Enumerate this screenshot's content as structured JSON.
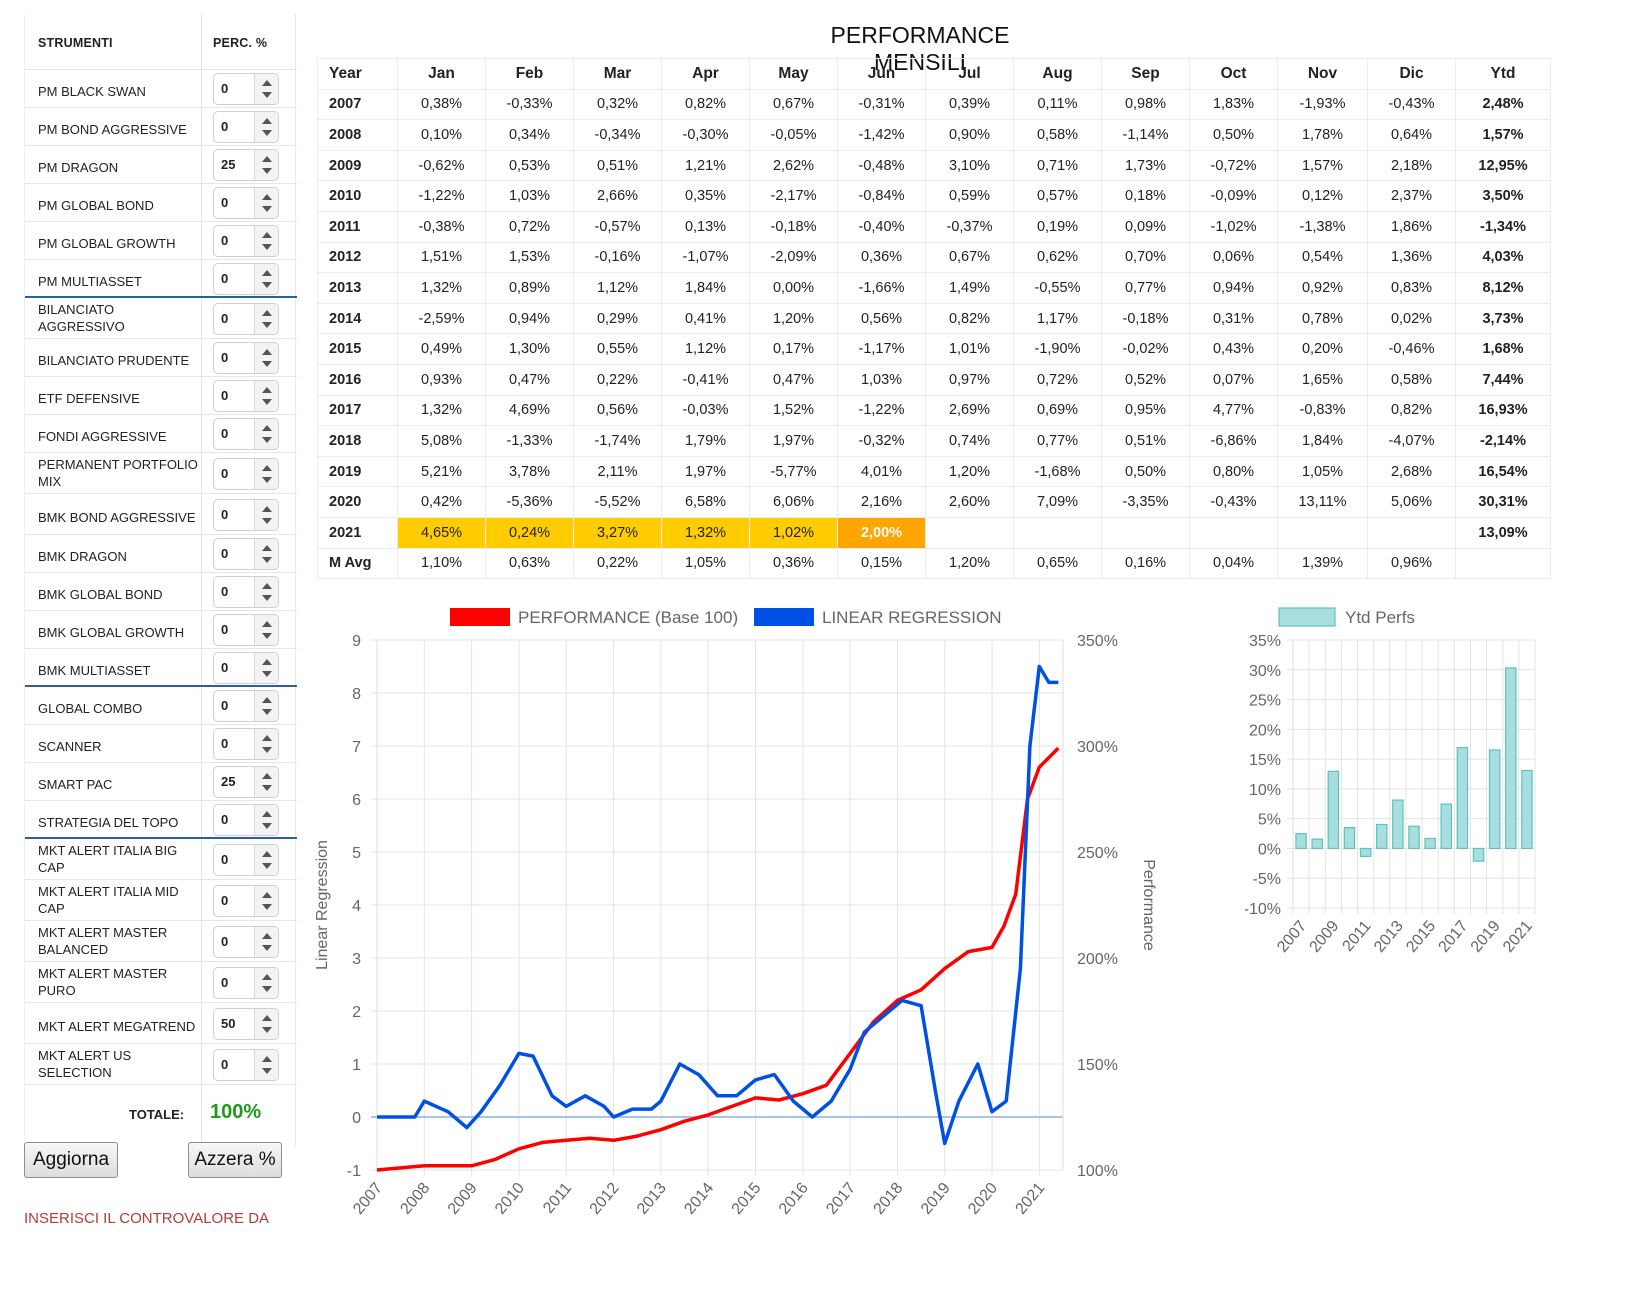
{
  "left_panel": {
    "header": {
      "col1": "STRUMENTI",
      "col2": "PERC. %"
    },
    "instruments": [
      {
        "name": "PM BLACK SWAN",
        "value": "0"
      },
      {
        "name": "PM BOND AGGRESSIVE",
        "value": "0"
      },
      {
        "name": "PM DRAGON",
        "value": "25"
      },
      {
        "name": "PM GLOBAL BOND",
        "value": "0"
      },
      {
        "name": "PM GLOBAL GROWTH",
        "value": "0"
      },
      {
        "name": "PM MULTIASSET",
        "value": "0"
      },
      {
        "name": "BILANCIATO AGGRESSIVO",
        "value": "0"
      },
      {
        "name": "BILANCIATO PRUDENTE",
        "value": "0"
      },
      {
        "name": "ETF DEFENSIVE",
        "value": "0"
      },
      {
        "name": "FONDI AGGRESSIVE",
        "value": "0"
      },
      {
        "name": "PERMANENT PORTFOLIO MIX",
        "value": "0"
      },
      {
        "name": "BMK BOND AGGRESSIVE",
        "value": "0"
      },
      {
        "name": "BMK DRAGON",
        "value": "0"
      },
      {
        "name": "BMK GLOBAL BOND",
        "value": "0"
      },
      {
        "name": "BMK GLOBAL GROWTH",
        "value": "0"
      },
      {
        "name": "BMK MULTIASSET",
        "value": "0"
      },
      {
        "name": "GLOBAL COMBO",
        "value": "0"
      },
      {
        "name": "SCANNER",
        "value": "0"
      },
      {
        "name": "SMART PAC",
        "value": "25"
      },
      {
        "name": "STRATEGIA DEL TOPO",
        "value": "0"
      },
      {
        "name": "MKT ALERT ITALIA BIG CAP",
        "value": "0"
      },
      {
        "name": "MKT ALERT ITALIA MID CAP",
        "value": "0"
      },
      {
        "name": "MKT ALERT MASTER BALANCED",
        "value": "0"
      },
      {
        "name": "MKT ALERT MASTER PURO",
        "value": "0"
      },
      {
        "name": "MKT ALERT MEGATREND",
        "value": "50"
      },
      {
        "name": "MKT ALERT US SELECTION",
        "value": "0"
      }
    ],
    "totale_label": "TOTALE:",
    "totale_value": "100%",
    "aggiorna_label": "Aggiorna",
    "azzera_label": "Azzera %",
    "inserisci_text": "INSERISCI IL CONTROVALORE DA"
  },
  "table": {
    "title": "PERFORMANCE MENSILI",
    "headers": [
      "Year",
      "Jan",
      "Feb",
      "Mar",
      "Apr",
      "May",
      "Jun",
      "Jul",
      "Aug",
      "Sep",
      "Oct",
      "Nov",
      "Dic",
      "Ytd"
    ],
    "rows": [
      [
        "2007",
        "0,38%",
        "-0,33%",
        "0,32%",
        "0,82%",
        "0,67%",
        "-0,31%",
        "0,39%",
        "0,11%",
        "0,98%",
        "1,83%",
        "-1,93%",
        "-0,43%",
        "2,48%"
      ],
      [
        "2008",
        "0,10%",
        "0,34%",
        "-0,34%",
        "-0,30%",
        "-0,05%",
        "-1,42%",
        "0,90%",
        "0,58%",
        "-1,14%",
        "0,50%",
        "1,78%",
        "0,64%",
        "1,57%"
      ],
      [
        "2009",
        "-0,62%",
        "0,53%",
        "0,51%",
        "1,21%",
        "2,62%",
        "-0,48%",
        "3,10%",
        "0,71%",
        "1,73%",
        "-0,72%",
        "1,57%",
        "2,18%",
        "12,95%"
      ],
      [
        "2010",
        "-1,22%",
        "1,03%",
        "2,66%",
        "0,35%",
        "-2,17%",
        "-0,84%",
        "0,59%",
        "0,57%",
        "0,18%",
        "-0,09%",
        "0,12%",
        "2,37%",
        "3,50%"
      ],
      [
        "2011",
        "-0,38%",
        "0,72%",
        "-0,57%",
        "0,13%",
        "-0,18%",
        "-0,40%",
        "-0,37%",
        "0,19%",
        "0,09%",
        "-1,02%",
        "-1,38%",
        "1,86%",
        "-1,34%"
      ],
      [
        "2012",
        "1,51%",
        "1,53%",
        "-0,16%",
        "-1,07%",
        "-2,09%",
        "0,36%",
        "0,67%",
        "0,62%",
        "0,70%",
        "0,06%",
        "0,54%",
        "1,36%",
        "4,03%"
      ],
      [
        "2013",
        "1,32%",
        "0,89%",
        "1,12%",
        "1,84%",
        "0,00%",
        "-1,66%",
        "1,49%",
        "-0,55%",
        "0,77%",
        "0,94%",
        "0,92%",
        "0,83%",
        "8,12%"
      ],
      [
        "2014",
        "-2,59%",
        "0,94%",
        "0,29%",
        "0,41%",
        "1,20%",
        "0,56%",
        "0,82%",
        "1,17%",
        "-0,18%",
        "0,31%",
        "0,78%",
        "0,02%",
        "3,73%"
      ],
      [
        "2015",
        "0,49%",
        "1,30%",
        "0,55%",
        "1,12%",
        "0,17%",
        "-1,17%",
        "1,01%",
        "-1,90%",
        "-0,02%",
        "0,43%",
        "0,20%",
        "-0,46%",
        "1,68%"
      ],
      [
        "2016",
        "0,93%",
        "0,47%",
        "0,22%",
        "-0,41%",
        "0,47%",
        "1,03%",
        "0,97%",
        "0,72%",
        "0,52%",
        "0,07%",
        "1,65%",
        "0,58%",
        "7,44%"
      ],
      [
        "2017",
        "1,32%",
        "4,69%",
        "0,56%",
        "-0,03%",
        "1,52%",
        "-1,22%",
        "2,69%",
        "0,69%",
        "0,95%",
        "4,77%",
        "-0,83%",
        "0,82%",
        "16,93%"
      ],
      [
        "2018",
        "5,08%",
        "-1,33%",
        "-1,74%",
        "1,79%",
        "1,97%",
        "-0,32%",
        "0,74%",
        "0,77%",
        "0,51%",
        "-6,86%",
        "1,84%",
        "-4,07%",
        "-2,14%"
      ],
      [
        "2019",
        "5,21%",
        "3,78%",
        "2,11%",
        "1,97%",
        "-5,77%",
        "4,01%",
        "1,20%",
        "-1,68%",
        "0,50%",
        "0,80%",
        "1,05%",
        "2,68%",
        "16,54%"
      ],
      [
        "2020",
        "0,42%",
        "-5,36%",
        "-5,52%",
        "6,58%",
        "6,06%",
        "2,16%",
        "2,60%",
        "7,09%",
        "-3,35%",
        "-0,43%",
        "13,11%",
        "5,06%",
        "30,31%"
      ],
      [
        "2021",
        "4,65%",
        "0,24%",
        "3,27%",
        "1,32%",
        "1,02%",
        "2,00%",
        "",
        "",
        "",
        "",
        "",
        "",
        "13,09%"
      ],
      [
        "M Avg",
        "1,10%",
        "0,63%",
        "0,22%",
        "1,05%",
        "0,36%",
        "0,15%",
        "1,20%",
        "0,65%",
        "0,16%",
        "0,04%",
        "1,39%",
        "0,96%",
        ""
      ]
    ],
    "highlight_colors": {
      "months": "#ffcc00",
      "current": "#ffa500"
    }
  },
  "chart_data": [
    {
      "type": "line",
      "series": [
        {
          "name": "PERFORMANCE (Base 100)",
          "color": "#ff0000",
          "axis": "right",
          "x": [
            2007,
            2007.5,
            2008,
            2008.5,
            2009,
            2009.5,
            2010,
            2010.5,
            2011,
            2011.5,
            2012,
            2012.5,
            2013,
            2013.5,
            2014,
            2014.5,
            2015,
            2015.5,
            2016,
            2016.5,
            2017,
            2017.5,
            2018,
            2018.5,
            2019,
            2019.5,
            2020,
            2020.25,
            2020.5,
            2020.75,
            2021,
            2021.4
          ],
          "y": [
            100,
            101,
            102,
            102,
            102,
            105,
            110,
            113,
            114,
            115,
            114,
            116,
            119,
            123,
            126,
            130,
            134,
            133,
            136,
            140,
            155,
            170,
            180,
            185,
            195,
            203,
            205,
            215,
            230,
            275,
            290,
            299
          ]
        },
        {
          "name": "LINEAR REGRESSION",
          "color": "#0050e6",
          "axis": "left",
          "x": [
            2007,
            2007.8,
            2008,
            2008.5,
            2008.9,
            2009.2,
            2009.6,
            2010,
            2010.3,
            2010.7,
            2011,
            2011.4,
            2011.8,
            2012,
            2012.4,
            2012.8,
            2013,
            2013.4,
            2013.8,
            2014.2,
            2014.6,
            2015,
            2015.4,
            2015.8,
            2016.2,
            2016.6,
            2017,
            2017.3,
            2017.7,
            2018.1,
            2018.5,
            2018.8,
            2019,
            2019.3,
            2019.7,
            2020,
            2020.3,
            2020.6,
            2020.8,
            2021,
            2021.2,
            2021.4
          ],
          "y": [
            0,
            0,
            0.3,
            0.1,
            -0.2,
            0.1,
            0.6,
            1.2,
            1.15,
            0.4,
            0.2,
            0.4,
            0.2,
            0,
            0.15,
            0.15,
            0.3,
            1.0,
            0.8,
            0.4,
            0.4,
            0.7,
            0.8,
            0.3,
            0,
            0.3,
            0.9,
            1.6,
            1.9,
            2.2,
            2.1,
            0.5,
            -0.5,
            0.3,
            1.0,
            0.1,
            0.3,
            2.8,
            7.0,
            8.5,
            8.2,
            8.2
          ]
        }
      ],
      "xlim": [
        2007,
        2021.5
      ],
      "x_ticks": [
        "2007",
        "2008",
        "2009",
        "2010",
        "2011",
        "2012",
        "2013",
        "2014",
        "2015",
        "2016",
        "2017",
        "2018",
        "2019",
        "2020",
        "2021"
      ],
      "ylabel_left": "Linear Regression",
      "ylim_left": [
        -1,
        9
      ],
      "y_ticks_left": [
        "-1",
        "0",
        "1",
        "2",
        "3",
        "4",
        "5",
        "6",
        "7",
        "8",
        "9"
      ],
      "ylabel_right": "Performance",
      "ylim_right": [
        100,
        350
      ],
      "y_ticks_right": [
        "100%",
        "150%",
        "200%",
        "250%",
        "300%",
        "350%"
      ],
      "grid": true,
      "legend": "top"
    },
    {
      "type": "bar",
      "series": [
        {
          "name": "Ytd Perfs",
          "color": "#a8dede"
        }
      ],
      "categories": [
        "2007",
        "2008",
        "2009",
        "2010",
        "2011",
        "2012",
        "2013",
        "2014",
        "2015",
        "2016",
        "2017",
        "2018",
        "2019",
        "2020",
        "2021"
      ],
      "x_tick_labels": [
        "2007",
        "2009",
        "2011",
        "2013",
        "2015",
        "2017",
        "2019",
        "2021"
      ],
      "values": [
        2.48,
        1.57,
        12.95,
        3.5,
        -1.34,
        4.03,
        8.12,
        3.73,
        1.68,
        7.44,
        16.93,
        -2.14,
        16.54,
        30.31,
        13.09
      ],
      "ylim": [
        -10,
        35
      ],
      "y_ticks": [
        "-10%",
        "-5%",
        "0%",
        "5%",
        "10%",
        "15%",
        "20%",
        "25%",
        "30%",
        "35%"
      ],
      "grid": true,
      "legend": "top"
    }
  ]
}
